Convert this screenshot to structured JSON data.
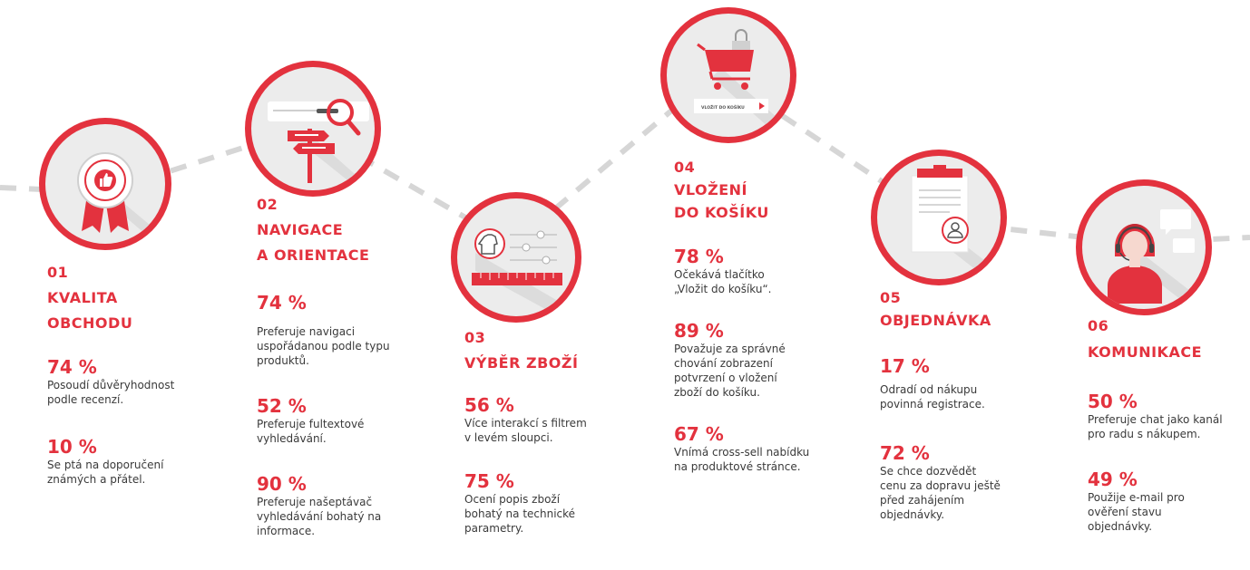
{
  "colors": {
    "accent": "#e3323e",
    "circle_fill": "#ececec",
    "connector": "#d6d6d6"
  },
  "steps": [
    {
      "number": "01",
      "title_lines": [
        "KVALITA",
        "OBCHODU"
      ],
      "icon": "award-ribbon-icon",
      "stats": [
        {
          "value": "74 %",
          "lines": [
            "Posoudí důvěryhodnost",
            "podle recenzí."
          ]
        },
        {
          "value": "10 %",
          "lines": [
            "Se ptá na doporučení",
            "známých a přátel."
          ]
        }
      ]
    },
    {
      "number": "02",
      "title_lines": [
        "NAVIGACE",
        "A ORIENTACE"
      ],
      "icon": "search-signpost-icon",
      "stats": [
        {
          "value": "74 %",
          "lines": [
            "Preferuje navigaci",
            "uspořádanou podle typu",
            "produktů."
          ]
        },
        {
          "value": "52 %",
          "lines": [
            "Preferuje fultextové",
            "vyhledávání."
          ]
        },
        {
          "value": "90 %",
          "lines": [
            "Preferuje našeptávač",
            "vyhledávání bohatý na",
            "informace."
          ]
        }
      ]
    },
    {
      "number": "03",
      "title_lines": [
        "VÝBĚR ZBOŽÍ"
      ],
      "icon": "filter-sliders-icon",
      "stats": [
        {
          "value": "56 %",
          "lines": [
            "Více interakcí s filtrem",
            "v levém sloupci."
          ]
        },
        {
          "value": "75 %",
          "lines": [
            "Ocení popis zboží",
            "bohatý na technické",
            "parametry."
          ]
        }
      ]
    },
    {
      "number": "04",
      "title_lines": [
        "VLOŽENÍ",
        "DO KOŠÍKU"
      ],
      "icon": "shopping-cart-icon",
      "button_text": "VLOŽIT DO KOŠÍKU",
      "stats": [
        {
          "value": "78 %",
          "lines": [
            "Očekává tlačítko",
            "„Vložit do košíku“."
          ]
        },
        {
          "value": "89 %",
          "lines": [
            "Považuje za správné",
            "chování zobrazení",
            "potvrzení o vložení",
            "zboží do košíku."
          ]
        },
        {
          "value": "67 %",
          "lines": [
            "Vnímá cross-sell nabídku",
            "na produktové stránce."
          ]
        }
      ]
    },
    {
      "number": "05",
      "title_lines": [
        "OBJEDNÁVKA"
      ],
      "icon": "clipboard-user-icon",
      "stats": [
        {
          "value": "17 %",
          "lines": [
            "Odradí od nákupu",
            "povinná registrace."
          ]
        },
        {
          "value": "72 %",
          "lines": [
            "Se chce dozvědět",
            "cenu za dopravu ještě",
            "před zahájením",
            "objednávky."
          ]
        }
      ]
    },
    {
      "number": "06",
      "title_lines": [
        "KOMUNIKACE"
      ],
      "icon": "support-agent-icon",
      "stats": [
        {
          "value": "50 %",
          "lines": [
            "Preferuje chat jako kanál",
            "pro radu s nákupem."
          ]
        },
        {
          "value": "49 %",
          "lines": [
            "Použije e-mail pro",
            "ověření stavu",
            "objednávky."
          ]
        }
      ]
    }
  ]
}
